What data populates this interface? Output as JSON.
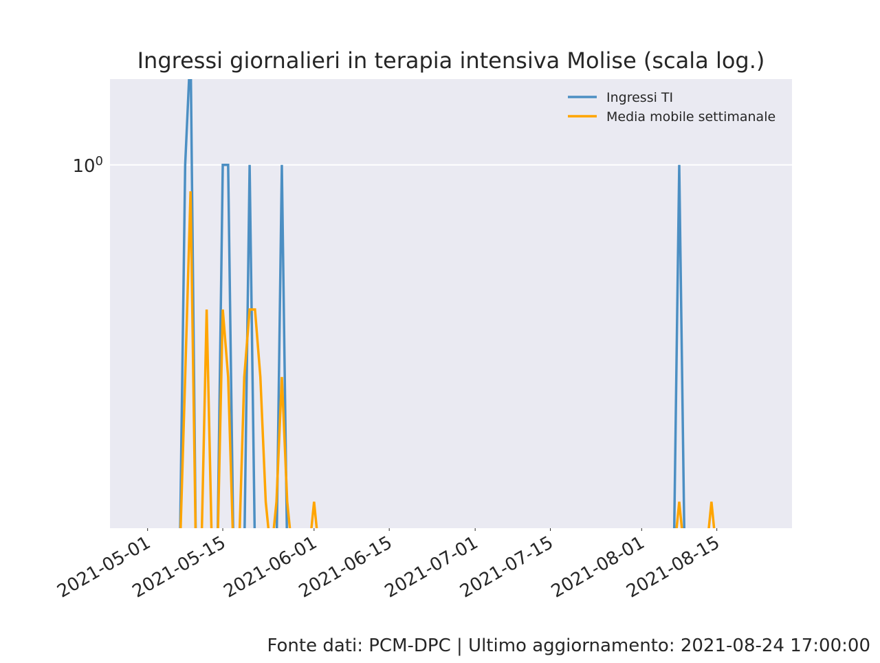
{
  "chart_data": {
    "type": "line",
    "title": "Ingressi giornalieri in terapia intensiva Molise (scala log.)",
    "xlabel": "",
    "ylabel": "",
    "y_scale": "log",
    "y_tick_label": "10",
    "y_tick_exponent": "0",
    "x_ticks": [
      "2021-05-01",
      "2021-05-15",
      "2021-06-01",
      "2021-06-15",
      "2021-07-01",
      "2021-07-15",
      "2021-08-01",
      "2021-08-15"
    ],
    "xlim": [
      "2021-04-24",
      "2021-08-29"
    ],
    "ylim": [
      0.12,
      1.65
    ],
    "grid": true,
    "legend_position": "top-right",
    "background_color": "#eaeaf2",
    "series": [
      {
        "name": "Ingressi TI",
        "color": "#4c8fc3",
        "points": [
          [
            "2021-05-08",
            1
          ],
          [
            "2021-05-09",
            2
          ],
          [
            "2021-05-15",
            1
          ],
          [
            "2021-05-16",
            1
          ],
          [
            "2021-05-20",
            1
          ],
          [
            "2021-05-26",
            1
          ],
          [
            "2021-08-08",
            1
          ]
        ]
      },
      {
        "name": "Media mobile settimanale",
        "color": "#ffa500",
        "points": [
          [
            "2021-05-08",
            0.29
          ],
          [
            "2021-05-09",
            0.857
          ],
          [
            "2021-05-12",
            0.43
          ],
          [
            "2021-05-15",
            0.43
          ],
          [
            "2021-05-16",
            0.29
          ],
          [
            "2021-05-19",
            0.29
          ],
          [
            "2021-05-20",
            0.43
          ],
          [
            "2021-05-21",
            0.43
          ],
          [
            "2021-05-22",
            0.29
          ],
          [
            "2021-05-23",
            0.14
          ],
          [
            "2021-05-25",
            0.14
          ],
          [
            "2021-05-26",
            0.29
          ],
          [
            "2021-05-27",
            0.14
          ],
          [
            "2021-06-01",
            0.14
          ],
          [
            "2021-08-08",
            0.14
          ],
          [
            "2021-08-14",
            0.14
          ]
        ]
      }
    ]
  },
  "footer": "Fonte dati: PCM-DPC | Ultimo aggiornamento: 2021-08-24 17:00:00"
}
